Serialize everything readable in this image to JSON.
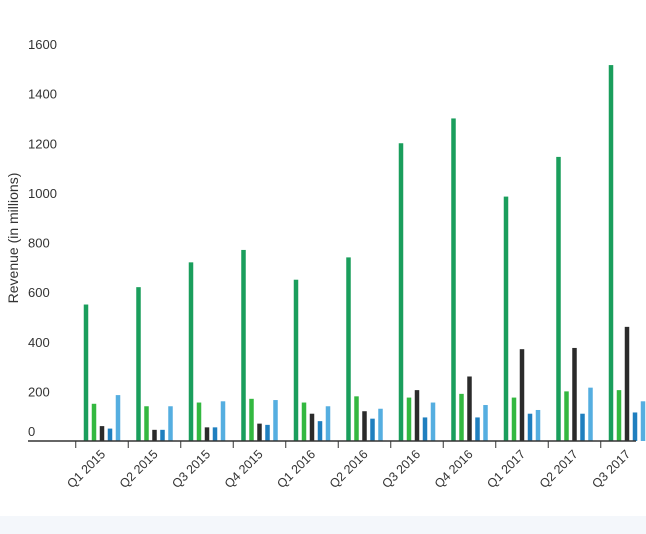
{
  "chart_data": {
    "type": "bar",
    "title": "",
    "xlabel": "",
    "ylabel": "Revenue (in millions)",
    "ylim": [
      0,
      1650
    ],
    "yticks": [
      0,
      200,
      400,
      600,
      800,
      1000,
      1200,
      1400,
      1600
    ],
    "grid": false,
    "categories": [
      "Q1 2015",
      "Q2 2015",
      "Q3 2015",
      "Q4 2015",
      "Q1 2016",
      "Q2 2016",
      "Q3 2016",
      "Q4 2016",
      "Q1 2017",
      "Q2 2017",
      "Q3 2017"
    ],
    "series": [
      {
        "color": "#1a9e5c",
        "values": [
          550,
          620,
          720,
          770,
          650,
          740,
          1200,
          1300,
          985,
          1145,
          1515
        ]
      },
      {
        "color": "#33b840",
        "values": [
          150,
          140,
          155,
          170,
          155,
          180,
          175,
          190,
          175,
          200,
          205
        ]
      },
      {
        "color": "#2b2b2b",
        "values": [
          60,
          45,
          55,
          70,
          110,
          120,
          205,
          260,
          370,
          375,
          460
        ]
      },
      {
        "color": "#1f7fbf",
        "values": [
          50,
          45,
          55,
          65,
          80,
          90,
          95,
          95,
          110,
          110,
          115
        ]
      },
      {
        "color": "#55aee0",
        "values": [
          185,
          140,
          160,
          165,
          140,
          130,
          155,
          145,
          125,
          215,
          160
        ]
      }
    ]
  }
}
